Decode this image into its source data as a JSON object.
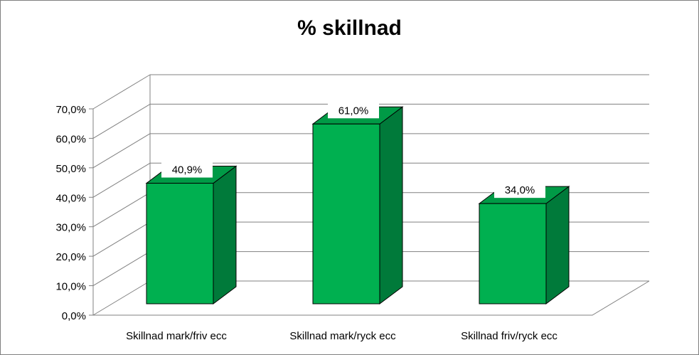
{
  "chart_data": {
    "type": "bar",
    "title": "% skillnad",
    "xlabel": "",
    "ylabel": "",
    "categories": [
      "Skillnad mark/friv ecc",
      "Skillnad mark/ryck ecc",
      "Skillnad friv/ryck ecc"
    ],
    "values": [
      40.9,
      61.0,
      34.0
    ],
    "data_labels": [
      "40,9%",
      "61,0%",
      "34,0%"
    ],
    "y_ticks": [
      "0,0%",
      "10,0%",
      "20,0%",
      "30,0%",
      "40,0%",
      "50,0%",
      "60,0%",
      "70,0%"
    ],
    "ylim": [
      0,
      70
    ],
    "grid": true,
    "legend": "none",
    "style": "3d-column",
    "colors": {
      "bar_front": "#00B050",
      "bar_side": "#007A3A",
      "bar_top": "#009A46",
      "grid": "#808080",
      "border": "#808080"
    }
  }
}
